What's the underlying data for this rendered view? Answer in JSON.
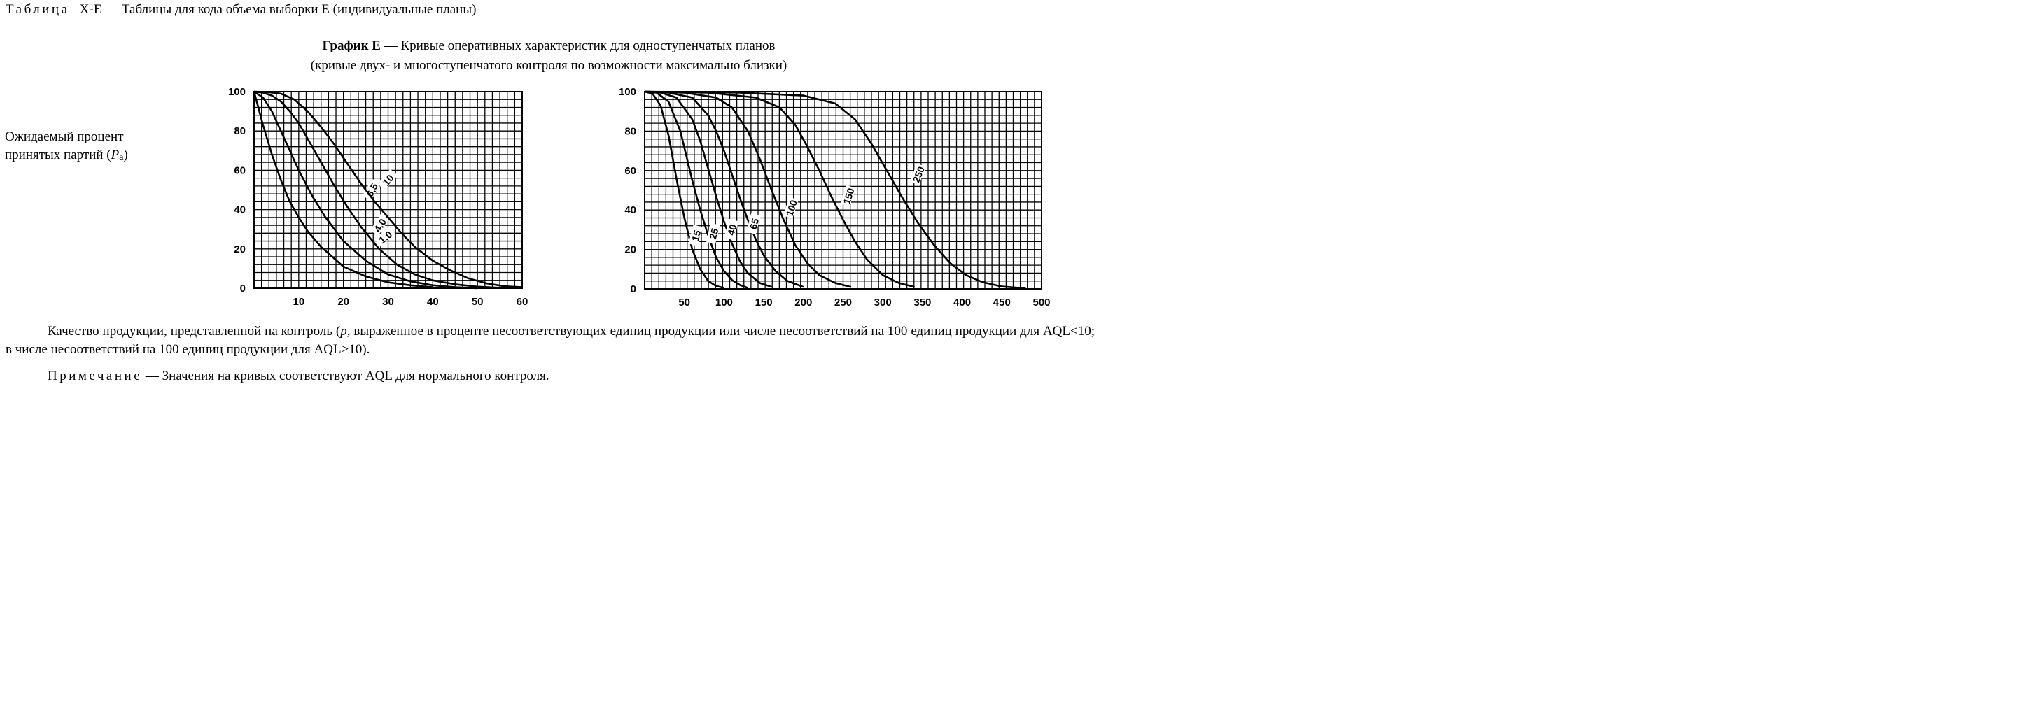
{
  "header": {
    "table_word": "Таблица",
    "table_rest": "X-E — Таблицы для кода объема выборки Е (индивидуальные планы)"
  },
  "chart_title": {
    "bold": "График Е",
    "line1_rest": " — Кривые оперативных характеристик для одноступенчатых планов",
    "line2": "(кривые двух- и многоступенчатого контроля по возможности максимально близки)"
  },
  "y_axis_label": "Ожидаемый процент принятых партий (Pa)",
  "caption": "Качество продукции, представленной на контроль (p, выраженное в проценте несоответствующих единиц продукции или числе несоответствий на 100 единиц продукции для AQL<10; в числе несоответствий на 100 единиц продукции для AQL>10).",
  "note": {
    "word": "Примечание",
    "rest": " — Значения на кривых соответствуют AQL для нормального контроля."
  },
  "chart_data": [
    {
      "type": "line",
      "title": "",
      "xlabel": "",
      "ylabel": "",
      "x_ticks": [
        "10",
        "20",
        "30",
        "40",
        "50",
        "60"
      ],
      "y_ticks": [
        "0",
        "20",
        "40",
        "60",
        "80",
        "100"
      ],
      "xlim": [
        0,
        60
      ],
      "ylim": [
        0,
        100
      ],
      "grid": true,
      "series": [
        {
          "name": "1,0",
          "x": [
            0,
            2,
            4,
            6,
            8,
            10,
            12,
            15,
            20,
            25,
            30,
            35,
            40
          ],
          "y": [
            100,
            83,
            68,
            55,
            44,
            36,
            29,
            21,
            11,
            6,
            3,
            1.5,
            0.5
          ]
        },
        {
          "name": "4,0",
          "x": [
            0,
            2,
            4,
            6,
            8,
            10,
            13,
            16,
            20,
            25,
            30,
            35,
            40,
            45,
            50
          ],
          "y": [
            100,
            97,
            90,
            80,
            70,
            60,
            47,
            36,
            24,
            14,
            7,
            3.5,
            1.5,
            0.5,
            0
          ]
        },
        {
          "name": "6,5",
          "x": [
            0,
            2,
            4,
            6,
            8,
            10,
            12,
            15,
            18,
            21,
            24,
            28,
            32,
            36,
            40,
            45,
            50,
            55
          ],
          "y": [
            100,
            99.5,
            98,
            95,
            90,
            84,
            76,
            64,
            52,
            41,
            31,
            20,
            12,
            7,
            4,
            2,
            0.8,
            0.2
          ]
        },
        {
          "name": "10",
          "x": [
            0,
            3,
            6,
            9,
            12,
            15,
            18,
            21,
            24,
            27,
            30,
            33,
            36,
            40,
            44,
            48,
            52,
            56,
            60
          ],
          "y": [
            100,
            99.8,
            99,
            96,
            90,
            82,
            73,
            63,
            53,
            44,
            36,
            28,
            21,
            14,
            9,
            5,
            2.5,
            1,
            0.5
          ]
        }
      ]
    },
    {
      "type": "line",
      "title": "",
      "xlabel": "",
      "ylabel": "",
      "x_ticks": [
        "50",
        "100",
        "150",
        "200",
        "250",
        "300",
        "350",
        "400",
        "450",
        "500"
      ],
      "y_ticks": [
        "0",
        "20",
        "40",
        "60",
        "80",
        "100"
      ],
      "xlim": [
        0,
        500
      ],
      "ylim": [
        0,
        100
      ],
      "grid": true,
      "series": [
        {
          "name": "15",
          "x": [
            0,
            10,
            20,
            30,
            40,
            50,
            60,
            70,
            80,
            90,
            100
          ],
          "y": [
            100,
            99,
            93,
            78,
            56,
            36,
            20,
            10,
            4,
            1.5,
            0.5
          ]
        },
        {
          "name": "25",
          "x": [
            0,
            15,
            30,
            45,
            60,
            70,
            80,
            90,
            100,
            110,
            120,
            130
          ],
          "y": [
            100,
            99.5,
            95,
            80,
            55,
            40,
            27,
            16,
            9,
            4.5,
            2,
            0.5
          ]
        },
        {
          "name": "40",
          "x": [
            0,
            20,
            40,
            60,
            70,
            80,
            90,
            100,
            110,
            120,
            130,
            145,
            160
          ],
          "y": [
            100,
            99.5,
            97,
            86,
            75,
            61,
            47,
            34,
            23,
            14,
            8,
            3,
            1
          ]
        },
        {
          "name": "65",
          "x": [
            0,
            30,
            60,
            80,
            90,
            100,
            110,
            120,
            130,
            140,
            150,
            165,
            180,
            200
          ],
          "y": [
            100,
            99.5,
            97,
            88,
            80,
            70,
            58,
            46,
            35,
            25,
            17,
            9,
            4,
            1
          ]
        },
        {
          "name": "100",
          "x": [
            0,
            50,
            90,
            110,
            130,
            145,
            160,
            175,
            190,
            205,
            220,
            240,
            260
          ],
          "y": [
            100,
            99.5,
            97,
            92,
            80,
            66,
            50,
            35,
            22,
            13,
            7,
            3,
            1
          ]
        },
        {
          "name": "150",
          "x": [
            0,
            80,
            140,
            170,
            190,
            205,
            220,
            235,
            250,
            265,
            280,
            300,
            320,
            340
          ],
          "y": [
            100,
            99.5,
            97,
            92,
            83,
            72,
            60,
            47,
            35,
            24,
            15,
            7,
            3,
            1
          ]
        },
        {
          "name": "250",
          "x": [
            0,
            120,
            200,
            240,
            265,
            285,
            305,
            325,
            345,
            365,
            385,
            405,
            425,
            450,
            480
          ],
          "y": [
            100,
            99.5,
            98,
            94,
            86,
            74,
            60,
            46,
            33,
            22,
            13,
            7,
            3.5,
            1.2,
            0.3
          ]
        }
      ]
    }
  ]
}
